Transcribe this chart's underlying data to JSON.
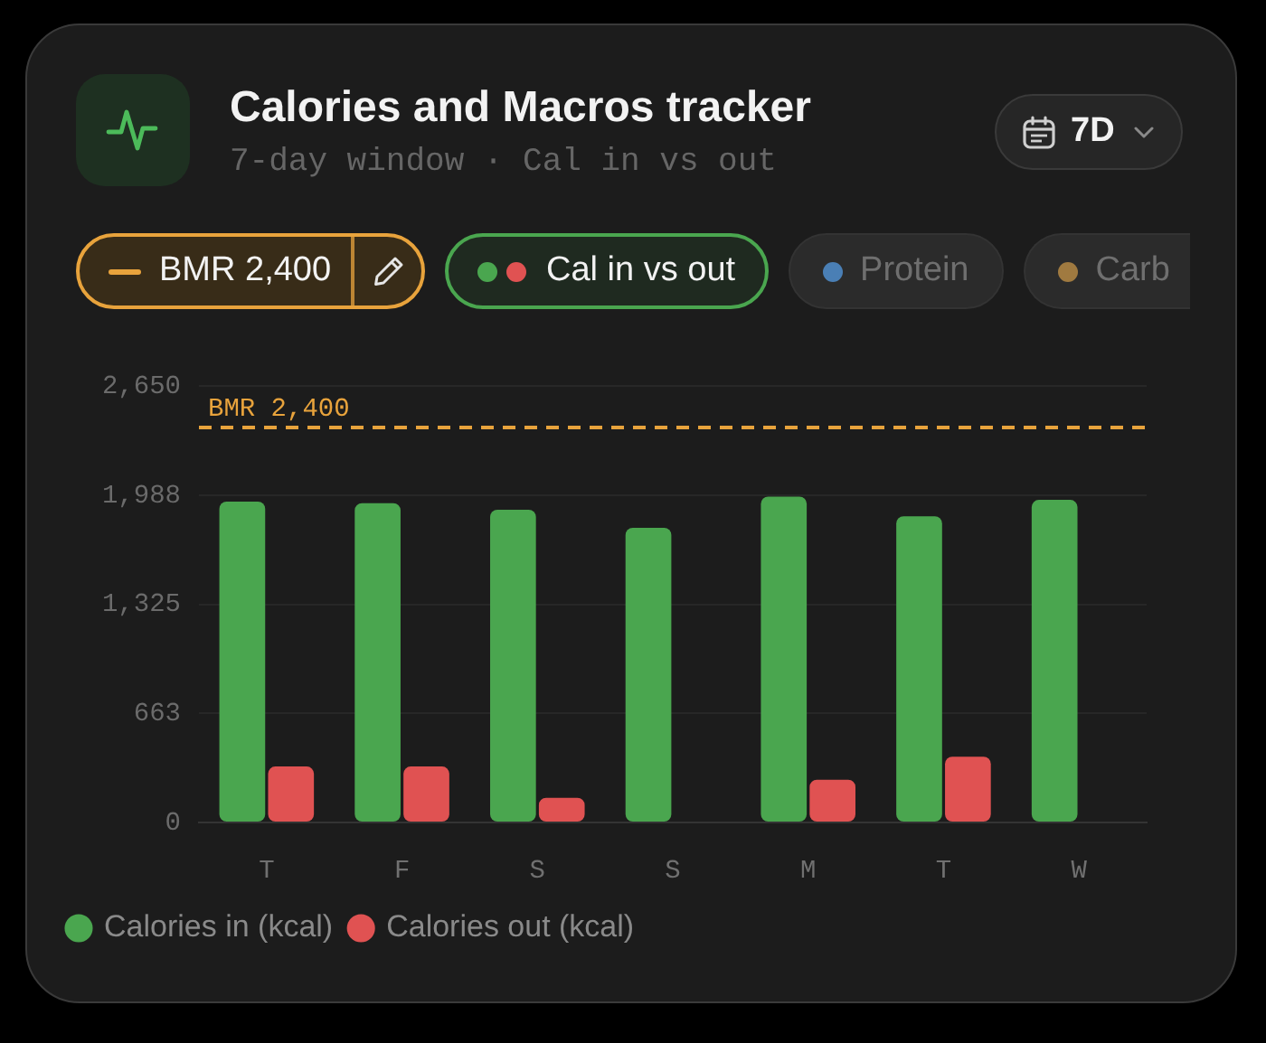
{
  "chart_data": {
    "type": "bar",
    "title": "Calories and Macros tracker",
    "subtitle": "7-day window · Cal in vs out",
    "categories": [
      "T",
      "F",
      "S",
      "S",
      "M",
      "T",
      "W"
    ],
    "series": [
      {
        "name": "Calories in (kcal)",
        "color": "#4aa64f",
        "values": [
          1950,
          1940,
          1900,
          1790,
          1980,
          1860,
          1960
        ]
      },
      {
        "name": "Calories out (kcal)",
        "color": "#e05252",
        "values": [
          340,
          340,
          150,
          0,
          260,
          400,
          0
        ]
      }
    ],
    "ylim": [
      0,
      2650
    ],
    "yticks": [
      0,
      {
        "value": 662.5,
        "label": "663"
      },
      {
        "value": 1325,
        "label": "1,325"
      },
      {
        "value": 1987.5,
        "label": "1,988"
      },
      {
        "value": 2650,
        "label": "2,650"
      }
    ],
    "grid": "y",
    "legend": "bottom left",
    "ref_lines": [
      {
        "axis": "y",
        "value": 2400,
        "label": "BMR 2,400",
        "color": "#e8a33c",
        "line_style": "dashed"
      }
    ],
    "annotations": [
      "7D",
      "Cal in vs out",
      "Protein",
      "Carb"
    ]
  }
}
